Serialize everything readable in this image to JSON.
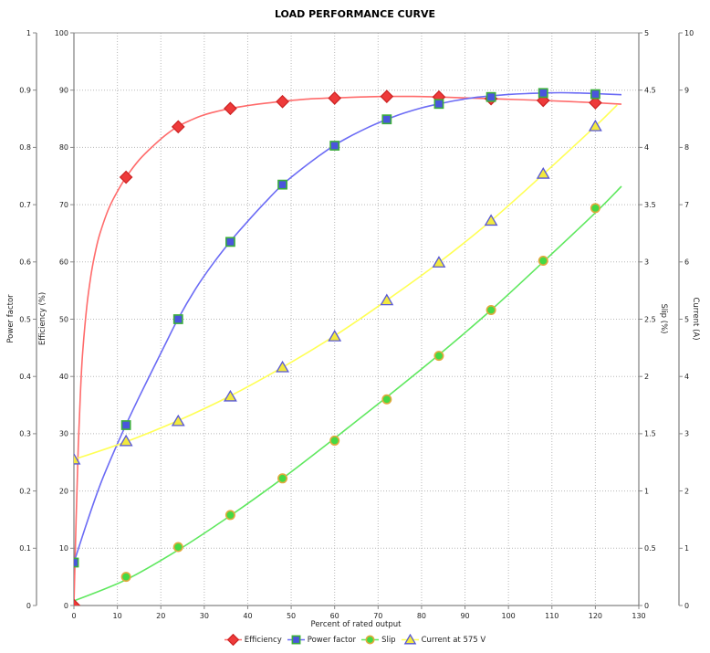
{
  "chart_data": {
    "type": "line",
    "title": "LOAD PERFORMANCE CURVE",
    "xlabel": "Percent of rated output",
    "grid": true,
    "legend_position": "bottom",
    "axes": {
      "x": {
        "label": "Percent of rated output",
        "min": 0,
        "max": 130,
        "step": 10
      },
      "power_factor": {
        "label": "Power factor",
        "min": 0,
        "max": 1,
        "step": 0.1,
        "side": "left-outer"
      },
      "efficiency": {
        "label": "Efficiency (%)",
        "min": 0,
        "max": 100,
        "step": 10,
        "side": "left-inner"
      },
      "slip": {
        "label": "Slip (%)",
        "min": 0,
        "max": 5,
        "step": 0.5,
        "side": "right-inner"
      },
      "current": {
        "label": "Current (A)",
        "min": 0,
        "max": 10,
        "step": 1,
        "side": "right-outer"
      }
    },
    "colors": {
      "grid": "#b8b8b8",
      "axis": "#666666",
      "tick": "#888888",
      "text": "#222222",
      "border": "#999999"
    },
    "series": [
      {
        "name": "Efficiency",
        "axis": "efficiency",
        "marker": "diamond",
        "line_color": "#ff6b6b",
        "marker_fill": "#ee3a3a",
        "marker_stroke": "#cc2222",
        "points": [
          [
            0,
            0
          ],
          [
            12,
            74.8
          ],
          [
            24,
            83.6
          ],
          [
            36,
            86.8
          ],
          [
            48,
            88.0
          ],
          [
            60,
            88.6
          ],
          [
            72,
            88.9
          ],
          [
            84,
            88.8
          ],
          [
            96,
            88.5
          ],
          [
            108,
            88.2
          ],
          [
            120,
            87.8
          ]
        ],
        "curve": [
          [
            0,
            0
          ],
          [
            0.5,
            15
          ],
          [
            1,
            28
          ],
          [
            1.5,
            37
          ],
          [
            2,
            44
          ],
          [
            3,
            52.5
          ],
          [
            4,
            58
          ],
          [
            5,
            62
          ],
          [
            6,
            65
          ],
          [
            8,
            69.3
          ],
          [
            10,
            72.3
          ],
          [
            12,
            74.8
          ],
          [
            15,
            77.8
          ],
          [
            18,
            80.1
          ],
          [
            21,
            82.1
          ],
          [
            24,
            83.7
          ],
          [
            27,
            84.8
          ],
          [
            30,
            85.7
          ],
          [
            33,
            86.3
          ],
          [
            36,
            86.8
          ],
          [
            40,
            87.3
          ],
          [
            44,
            87.7
          ],
          [
            48,
            88.05
          ],
          [
            54,
            88.45
          ],
          [
            60,
            88.65
          ],
          [
            66,
            88.8
          ],
          [
            72,
            88.9
          ],
          [
            78,
            88.9
          ],
          [
            84,
            88.8
          ],
          [
            90,
            88.65
          ],
          [
            96,
            88.5
          ],
          [
            102,
            88.35
          ],
          [
            108,
            88.2
          ],
          [
            114,
            88.0
          ],
          [
            120,
            87.8
          ],
          [
            126,
            87.55
          ]
        ]
      },
      {
        "name": "Power factor",
        "axis": "power_factor",
        "marker": "square",
        "line_color": "#6b6bf5",
        "marker_fill": "#4a55dd",
        "marker_stroke": "#3cae3c",
        "points": [
          [
            0,
            0.075
          ],
          [
            12,
            0.315
          ],
          [
            24,
            0.5
          ],
          [
            36,
            0.635
          ],
          [
            48,
            0.735
          ],
          [
            60,
            0.803
          ],
          [
            72,
            0.849
          ],
          [
            84,
            0.876
          ],
          [
            96,
            0.888
          ],
          [
            108,
            0.895
          ],
          [
            120,
            0.893
          ]
        ],
        "curve": [
          [
            0,
            0.075
          ],
          [
            3,
            0.145
          ],
          [
            6,
            0.21
          ],
          [
            9,
            0.265
          ],
          [
            12,
            0.316
          ],
          [
            15,
            0.364
          ],
          [
            18,
            0.41
          ],
          [
            21,
            0.456
          ],
          [
            24,
            0.501
          ],
          [
            28,
            0.553
          ],
          [
            32,
            0.597
          ],
          [
            36,
            0.636
          ],
          [
            40,
            0.671
          ],
          [
            44,
            0.704
          ],
          [
            48,
            0.735
          ],
          [
            52,
            0.76
          ],
          [
            56,
            0.783
          ],
          [
            60,
            0.804
          ],
          [
            64,
            0.821
          ],
          [
            68,
            0.836
          ],
          [
            72,
            0.849
          ],
          [
            76,
            0.86
          ],
          [
            80,
            0.869
          ],
          [
            84,
            0.876
          ],
          [
            88,
            0.882
          ],
          [
            92,
            0.887
          ],
          [
            96,
            0.89
          ],
          [
            100,
            0.8925
          ],
          [
            104,
            0.894
          ],
          [
            108,
            0.895
          ],
          [
            112,
            0.8955
          ],
          [
            116,
            0.895
          ],
          [
            120,
            0.894
          ],
          [
            126,
            0.892
          ]
        ]
      },
      {
        "name": "Slip",
        "axis": "slip",
        "marker": "circle",
        "line_color": "#5fe85f",
        "marker_fill": "#44d944",
        "marker_stroke": "#e2a93c",
        "points": [
          [
            12,
            0.25
          ],
          [
            24,
            0.51
          ],
          [
            36,
            0.79
          ],
          [
            48,
            1.11
          ],
          [
            60,
            1.44
          ],
          [
            72,
            1.8
          ],
          [
            84,
            2.18
          ],
          [
            96,
            2.58
          ],
          [
            108,
            3.01
          ],
          [
            120,
            3.47
          ]
        ],
        "curve": [
          [
            0,
            0.04
          ],
          [
            12,
            0.225
          ],
          [
            24,
            0.485
          ],
          [
            36,
            0.785
          ],
          [
            48,
            1.11
          ],
          [
            60,
            1.46
          ],
          [
            72,
            1.82
          ],
          [
            84,
            2.19
          ],
          [
            96,
            2.58
          ],
          [
            108,
            3.0
          ],
          [
            120,
            3.43
          ],
          [
            126,
            3.66
          ]
        ]
      },
      {
        "name": "Current at 575 V",
        "axis": "current",
        "marker": "triangle",
        "line_color": "#ffff55",
        "marker_fill": "#f2e93e",
        "marker_stroke": "#5656d6",
        "points": [
          [
            0,
            2.55
          ],
          [
            12,
            2.87
          ],
          [
            24,
            3.22
          ],
          [
            36,
            3.65
          ],
          [
            48,
            4.16
          ],
          [
            60,
            4.7
          ],
          [
            72,
            5.33
          ],
          [
            84,
            5.99
          ],
          [
            96,
            6.72
          ],
          [
            108,
            7.54
          ],
          [
            120,
            8.37
          ]
        ],
        "curve": [
          [
            0,
            2.55
          ],
          [
            12,
            2.86
          ],
          [
            24,
            3.23
          ],
          [
            36,
            3.66
          ],
          [
            48,
            4.16
          ],
          [
            60,
            4.71
          ],
          [
            72,
            5.33
          ],
          [
            84,
            5.99
          ],
          [
            96,
            6.72
          ],
          [
            108,
            7.53
          ],
          [
            120,
            8.37
          ],
          [
            125,
            8.74
          ]
        ]
      }
    ]
  }
}
